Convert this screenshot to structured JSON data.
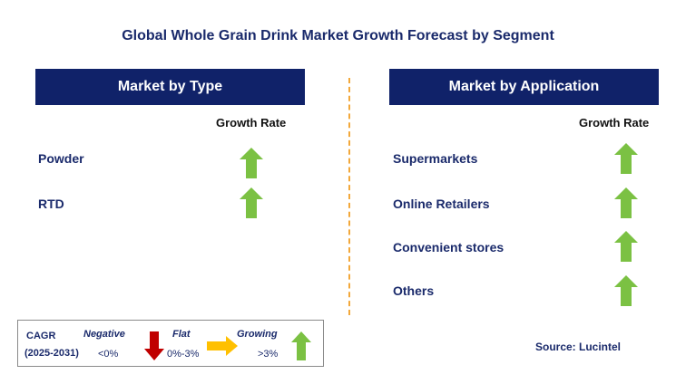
{
  "title": "Global Whole Grain Drink Market Growth Forecast by Segment",
  "colors": {
    "header_bg": "#102269",
    "arrow_up": "#7bc143",
    "arrow_down": "#c00000",
    "arrow_flat": "#ffc000",
    "divider": "#f2a83b"
  },
  "left_panel": {
    "header": "Market by Type",
    "growth_label": "Growth Rate",
    "rows": [
      {
        "label": "Powder",
        "trend": "growing",
        "icon": "up-arrow-icon"
      },
      {
        "label": "RTD",
        "trend": "growing",
        "icon": "up-arrow-icon"
      }
    ]
  },
  "right_panel": {
    "header": "Market by Application",
    "growth_label": "Growth Rate",
    "rows": [
      {
        "label": "Supermarkets",
        "trend": "growing",
        "icon": "up-arrow-icon"
      },
      {
        "label": "Online Retailers",
        "trend": "growing",
        "icon": "up-arrow-icon"
      },
      {
        "label": "Convenient stores",
        "trend": "growing",
        "icon": "up-arrow-icon"
      },
      {
        "label": "Others",
        "trend": "growing",
        "icon": "up-arrow-icon"
      }
    ]
  },
  "legend": {
    "cagr_label": "CAGR",
    "period": "(2025-2031)",
    "negative": {
      "label": "Negative",
      "range": "<0%",
      "icon": "down-arrow-icon"
    },
    "flat": {
      "label": "Flat",
      "range": "0%-3%",
      "icon": "right-arrow-icon"
    },
    "growing": {
      "label": "Growing",
      "range": ">3%",
      "icon": "up-arrow-icon"
    }
  },
  "source": "Source: Lucintel"
}
